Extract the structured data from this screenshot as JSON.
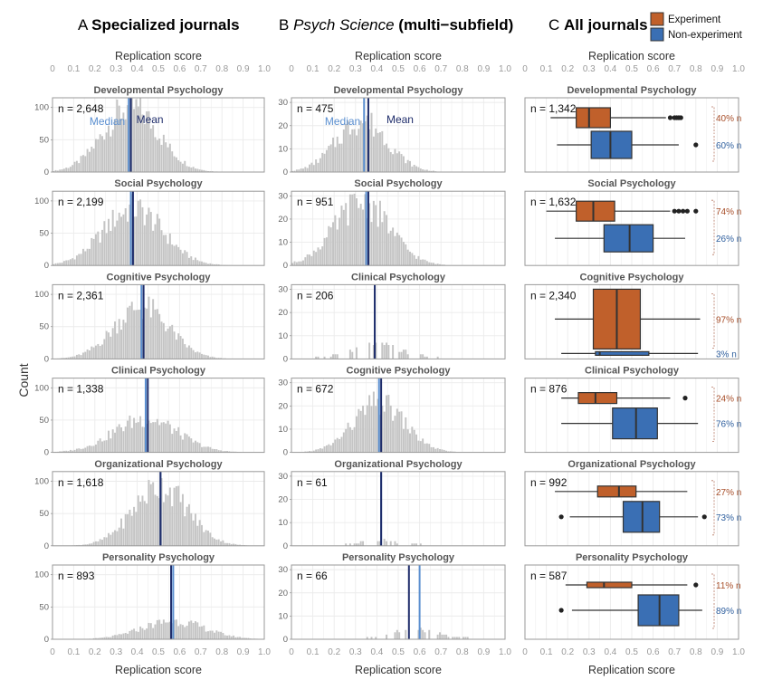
{
  "colors": {
    "experiment": "#c0602b",
    "nonexperiment": "#3a6fb4",
    "median": "#5b8fd0",
    "mean": "#1f2d6b",
    "bar": "#c4c4c4",
    "grid": "#ebebeb",
    "exp_text": "#a84f2a",
    "nonexp_text": "#2f5f9e"
  },
  "shared": {
    "x_axis_label": "Replication score",
    "y_axis_label": "Count",
    "x_ticks": [
      "0",
      "0.1",
      "0.2",
      "0.3",
      "0.4",
      "0.5",
      "0.6",
      "0.7",
      "0.8",
      "0.9",
      "1.0"
    ],
    "y_ticks_a": [
      "0",
      "50",
      "100"
    ],
    "y_ticks_b": [
      "0",
      "10",
      "20",
      "30"
    ]
  },
  "chart_data": [
    {
      "type": "bar",
      "panel_letter": "A",
      "title": "Specialized journals",
      "xlabel": "Replication score",
      "ylabel": "Count",
      "xlim": [
        0,
        1
      ],
      "ylim": [
        0,
        115
      ],
      "legend": {
        "median_label": "Median",
        "mean_label": "Mean"
      },
      "facets": [
        {
          "name": "Developmental Psychology",
          "n": "n = 2,648",
          "mu": 0.37,
          "sd": 0.13,
          "peak": 100,
          "median": 0.36,
          "mean": 0.37
        },
        {
          "name": "Social Psychology",
          "n": "n = 2,199",
          "mu": 0.38,
          "sd": 0.14,
          "peak": 88,
          "median": 0.37,
          "mean": 0.38
        },
        {
          "name": "Cognitive Psychology",
          "n": "n = 2,361",
          "mu": 0.42,
          "sd": 0.13,
          "peak": 80,
          "median": 0.42,
          "mean": 0.43
        },
        {
          "name": "Clinical Psychology",
          "n": "n = 1,338",
          "mu": 0.44,
          "sd": 0.15,
          "peak": 52,
          "median": 0.44,
          "mean": 0.45
        },
        {
          "name": "Organizational Psychology",
          "n": "n = 1,618",
          "mu": 0.51,
          "sd": 0.13,
          "peak": 92,
          "median": 0.51,
          "mean": 0.51
        },
        {
          "name": "Personality Psychology",
          "n": "n = 893",
          "mu": 0.57,
          "sd": 0.15,
          "peak": 28,
          "median": 0.57,
          "mean": 0.56
        }
      ]
    },
    {
      "type": "bar",
      "panel_letter": "B",
      "title_italic": "Psych Science",
      "title_rest": " (multi−subfield)",
      "xlabel": "Replication score",
      "ylabel": "Count",
      "xlim": [
        0,
        1
      ],
      "ylim": [
        0,
        32
      ],
      "legend": {
        "median_label": "Median",
        "mean_label": "Mean"
      },
      "facets": [
        {
          "name": "Developmental Psychology",
          "n": "n = 475",
          "mu": 0.33,
          "sd": 0.12,
          "peak": 22,
          "median": 0.34,
          "mean": 0.36
        },
        {
          "name": "Social Psychology",
          "n": "n = 951",
          "mu": 0.33,
          "sd": 0.13,
          "peak": 27,
          "median": 0.35,
          "mean": 0.36
        },
        {
          "name": "Clinical Psychology",
          "n": "n = 206",
          "mu": 0.39,
          "sd": 0.13,
          "peak": 6,
          "median": 0.39,
          "mean": 0.39
        },
        {
          "name": "Cognitive Psychology",
          "n": "n = 672",
          "mu": 0.41,
          "sd": 0.12,
          "peak": 21,
          "median": 0.41,
          "mean": 0.42
        },
        {
          "name": "Organizational Psychology",
          "n": "n = 61",
          "mu": 0.45,
          "sd": 0.13,
          "peak": 2,
          "median": 0.42,
          "mean": 0.42
        },
        {
          "name": "Personality Psychology",
          "n": "n = 66",
          "mu": 0.58,
          "sd": 0.12,
          "peak": 4,
          "median": 0.6,
          "mean": 0.55
        }
      ]
    },
    {
      "type": "box",
      "panel_letter": "C",
      "title": "All journals",
      "xlabel": "Replication score",
      "xlim": [
        0,
        1
      ],
      "legend": [
        {
          "label": "Experiment",
          "color": "#c0602b"
        },
        {
          "label": "Non-experiment",
          "color": "#3a6fb4"
        }
      ],
      "facets": [
        {
          "name": "Developmental Psychology",
          "n": "n = 1,342",
          "exp": {
            "min": 0.12,
            "q1": 0.24,
            "median": 0.3,
            "q3": 0.4,
            "max": 0.66,
            "outliers": [
              0.68,
              0.7,
              0.71,
              0.72,
              0.73
            ],
            "share": "40% n"
          },
          "non": {
            "min": 0.15,
            "q1": 0.31,
            "median": 0.4,
            "q3": 0.5,
            "max": 0.72,
            "outliers": [
              0.8
            ],
            "share": "60% n"
          }
        },
        {
          "name": "Social Psychology",
          "n": "n = 1,632",
          "exp": {
            "min": 0.1,
            "q1": 0.24,
            "median": 0.32,
            "q3": 0.42,
            "max": 0.68,
            "outliers": [
              0.7,
              0.72,
              0.74,
              0.76,
              0.8
            ],
            "share": "74% n"
          },
          "non": {
            "min": 0.14,
            "q1": 0.37,
            "median": 0.49,
            "q3": 0.6,
            "max": 0.75,
            "outliers": [],
            "share": "26% n"
          }
        },
        {
          "name": "Cognitive Psychology",
          "n": "n = 2,340",
          "exp": {
            "min": 0.14,
            "q1": 0.32,
            "median": 0.43,
            "q3": 0.54,
            "max": 0.82,
            "outliers": [],
            "share": "97% n"
          },
          "non": {
            "min": 0.17,
            "q1": 0.33,
            "median": 0.35,
            "q3": 0.58,
            "max": 0.81,
            "outliers": [],
            "share": "3% n"
          }
        },
        {
          "name": "Clinical Psychology",
          "n": "n = 876",
          "exp": {
            "min": 0.17,
            "q1": 0.25,
            "median": 0.33,
            "q3": 0.43,
            "max": 0.68,
            "outliers": [
              0.75
            ],
            "share": "24% n"
          },
          "non": {
            "min": 0.17,
            "q1": 0.41,
            "median": 0.52,
            "q3": 0.62,
            "max": 0.81,
            "outliers": [],
            "share": "76% n"
          }
        },
        {
          "name": "Organizational Psychology",
          "n": "n = 992",
          "exp": {
            "min": 0.14,
            "q1": 0.34,
            "median": 0.44,
            "q3": 0.52,
            "max": 0.76,
            "outliers": [],
            "share": "27% n"
          },
          "non": {
            "min": 0.21,
            "q1": 0.46,
            "median": 0.55,
            "q3": 0.63,
            "max": 0.81,
            "outliers": [
              0.17,
              0.84
            ],
            "share": "73% n"
          }
        },
        {
          "name": "Personality Psychology",
          "n": "n = 587",
          "exp": {
            "min": 0.19,
            "q1": 0.29,
            "median": 0.37,
            "q3": 0.5,
            "max": 0.76,
            "outliers": [
              0.8
            ],
            "share": "11% n"
          },
          "non": {
            "min": 0.22,
            "q1": 0.53,
            "median": 0.63,
            "q3": 0.72,
            "max": 0.83,
            "outliers": [
              0.17
            ],
            "share": "89% n"
          }
        }
      ]
    }
  ]
}
